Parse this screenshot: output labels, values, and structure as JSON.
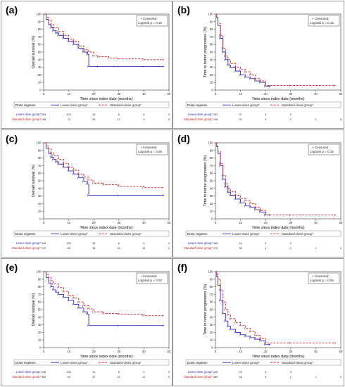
{
  "figure": {
    "panels": [
      {
        "label": "(a)",
        "col": 0,
        "row": 0
      },
      {
        "label": "(b)",
        "col": 1,
        "row": 0
      },
      {
        "label": "(c)",
        "col": 0,
        "row": 1
      },
      {
        "label": "(d)",
        "col": 1,
        "row": 1
      },
      {
        "label": "(e)",
        "col": 0,
        "row": 2
      },
      {
        "label": "(f)",
        "col": 1,
        "row": 2
      }
    ]
  },
  "chart_data": [
    {
      "type": "line",
      "panel": "(a)",
      "ylabel": "Overall survival (%)",
      "xlabel": "Time since index date (months)",
      "xlim": [
        0,
        50
      ],
      "ylim": [
        0,
        100
      ],
      "xticks": [
        0,
        10,
        20,
        30,
        40,
        50
      ],
      "yticks": [
        0,
        10,
        20,
        30,
        40,
        50,
        60,
        70,
        80,
        90,
        100
      ],
      "legend_box": {
        "lines": [
          "+ Censored",
          "Logrank p = 0.15"
        ],
        "position": "top-right"
      },
      "legend": {
        "title": "Dose regimen",
        "entries": [
          "Lower-dose group*",
          "Standard-dose group*"
        ]
      },
      "series": [
        {
          "name": "Lower-dose group*",
          "color": "#2b2bb3",
          "dash": "solid",
          "x": [
            0,
            1,
            2,
            3,
            4,
            5,
            6,
            8,
            10,
            12,
            14,
            16,
            17.5,
            18,
            22,
            30,
            40,
            48
          ],
          "y": [
            100,
            93,
            86,
            82,
            78,
            75,
            72,
            68,
            64,
            60,
            55,
            50,
            47,
            31,
            31,
            31,
            31,
            31
          ]
        },
        {
          "name": "Standard-dose group*",
          "color": "#cc2222",
          "dash": "dashed",
          "x": [
            0,
            1,
            2,
            3,
            4,
            6,
            8,
            10,
            12,
            14,
            16,
            18,
            20,
            22,
            26,
            30,
            40,
            48
          ],
          "y": [
            100,
            96,
            92,
            86,
            82,
            77,
            72,
            67,
            64,
            58,
            53,
            50,
            45,
            44,
            42,
            41,
            40,
            40
          ]
        }
      ],
      "risk_table": {
        "rows": [
          {
            "name": "Lower-dose group*",
            "values": [
              "263",
              "103",
              "16",
              "6",
              "6",
              "0"
            ]
          },
          {
            "name": "Standard-dose group*",
            "values": [
              "198",
              "73",
              "26",
              "17",
              "9",
              "0"
            ]
          }
        ]
      }
    },
    {
      "type": "line",
      "panel": "(b)",
      "ylabel": "Time to tumor progression (%)",
      "xlabel": "Time since index date (months)",
      "xlim": [
        0,
        50
      ],
      "ylim": [
        0,
        100
      ],
      "xticks": [
        0,
        10,
        20,
        30,
        40,
        50
      ],
      "yticks": [
        0,
        10,
        20,
        30,
        40,
        50,
        60,
        70,
        80,
        90,
        100
      ],
      "legend_box": {
        "lines": [
          "+ Censored",
          "Logrank p = 0.12"
        ],
        "position": "top-right"
      },
      "legend": {
        "title": "Dose regimen",
        "entries": [
          "Lower-dose group*",
          "Standard-dose group*"
        ]
      },
      "series": [
        {
          "name": "Lower-dose group*",
          "color": "#2b2bb3",
          "dash": "solid",
          "x": [
            0,
            0.5,
            1,
            2,
            3,
            4,
            5,
            6,
            8,
            10,
            12,
            14,
            16,
            18,
            20,
            22
          ],
          "y": [
            100,
            95,
            85,
            68,
            50,
            40,
            33,
            30,
            25,
            20,
            17,
            15,
            12,
            10,
            5,
            5
          ]
        },
        {
          "name": "Standard-dose group*",
          "color": "#cc2222",
          "dash": "dashed",
          "x": [
            0,
            0.5,
            1,
            2,
            3,
            4,
            5,
            6,
            8,
            10,
            12,
            14,
            16,
            18,
            20,
            30,
            48
          ],
          "y": [
            100,
            96,
            88,
            72,
            55,
            45,
            40,
            35,
            30,
            27,
            24,
            20,
            15,
            12,
            6,
            6,
            6
          ]
        }
      ],
      "risk_table": {
        "rows": [
          {
            "name": "Lower-dose group*",
            "values": [
              "263",
              "37",
              "5",
              "0",
              "",
              ""
            ]
          },
          {
            "name": "Standard-dose group*",
            "values": [
              "198",
              "32",
              "4",
              "2",
              "1",
              "0"
            ]
          }
        ]
      }
    },
    {
      "type": "line",
      "panel": "(c)",
      "ylabel": "Overall survival (%)",
      "xlabel": "Time since index date (months)",
      "xlim": [
        0,
        50
      ],
      "ylim": [
        0,
        100
      ],
      "xticks": [
        0,
        10,
        20,
        30,
        40,
        50
      ],
      "yticks": [
        0,
        10,
        20,
        30,
        40,
        50,
        60,
        70,
        80,
        90,
        100
      ],
      "legend_box": {
        "lines": [
          "+ Censored",
          "Logrank p = 0.08"
        ],
        "position": "top-right"
      },
      "legend": {
        "title": "Dose regimen",
        "entries": [
          "Lower-dose group*",
          "Standard-dose group*"
        ]
      },
      "series": [
        {
          "name": "Lower-dose group*",
          "color": "#2b2bb3",
          "dash": "solid",
          "x": [
            0,
            1,
            2,
            3,
            4,
            5,
            6,
            8,
            10,
            12,
            14,
            16,
            17.5,
            18,
            30,
            48
          ],
          "y": [
            100,
            93,
            86,
            81,
            78,
            75,
            72,
            68,
            63,
            59,
            54,
            49,
            46,
            31,
            31,
            31
          ]
        },
        {
          "name": "Standard-dose group*",
          "color": "#cc2222",
          "dash": "dashed",
          "x": [
            0,
            1,
            2,
            3,
            4,
            6,
            8,
            10,
            12,
            14,
            16,
            18,
            20,
            24,
            30,
            40,
            48
          ],
          "y": [
            100,
            96,
            92,
            87,
            83,
            78,
            73,
            68,
            64,
            59,
            55,
            51,
            47,
            45,
            43,
            41,
            41
          ]
        }
      ],
      "risk_table": {
        "rows": [
          {
            "name": "Lower-dose group*",
            "values": [
              "345",
              "133",
              "39",
              "6",
              "4",
              "0"
            ]
          },
          {
            "name": "Standard-dose group*",
            "values": [
              "172",
              "63",
              "33",
              "20",
              "11",
              "0"
            ]
          }
        ]
      }
    },
    {
      "type": "line",
      "panel": "(d)",
      "ylabel": "Time to tumor progression (%)",
      "xlabel": "Time since index date (months)",
      "xlim": [
        0,
        50
      ],
      "ylim": [
        0,
        100
      ],
      "xticks": [
        0,
        10,
        20,
        30,
        40,
        50
      ],
      "yticks": [
        0,
        10,
        20,
        30,
        40,
        50,
        60,
        70,
        80,
        90,
        100
      ],
      "legend_box": {
        "lines": [
          "+ Censored",
          "Logrank p = 0.15"
        ],
        "position": "top-right"
      },
      "legend": {
        "title": "Dose regimen",
        "entries": [
          "Lower-dose group*",
          "Standard-dose group*"
        ]
      },
      "series": [
        {
          "name": "Lower-dose group*",
          "color": "#2b2bb3",
          "dash": "solid",
          "x": [
            0,
            0.5,
            1,
            2,
            3,
            4,
            5,
            6,
            8,
            10,
            12,
            14,
            16,
            18,
            20,
            22
          ],
          "y": [
            100,
            95,
            86,
            70,
            52,
            42,
            35,
            31,
            26,
            21,
            17,
            15,
            12,
            9,
            5,
            5
          ]
        },
        {
          "name": "Standard-dose group*",
          "color": "#cc2222",
          "dash": "dashed",
          "x": [
            0,
            0.5,
            1,
            2,
            3,
            4,
            5,
            6,
            8,
            10,
            12,
            14,
            16,
            18,
            20,
            30,
            48
          ],
          "y": [
            100,
            96,
            89,
            73,
            57,
            46,
            40,
            36,
            31,
            27,
            24,
            20,
            15,
            11,
            5,
            5,
            5
          ]
        }
      ],
      "risk_table": {
        "rows": [
          {
            "name": "Lower-dose group*",
            "values": [
              "345",
              "44",
              "5",
              "0",
              "",
              ""
            ]
          },
          {
            "name": "Standard-dose group*",
            "values": [
              "172",
              "35",
              "4",
              "2",
              "1",
              "0"
            ]
          }
        ]
      }
    },
    {
      "type": "line",
      "panel": "(e)",
      "ylabel": "Overall survival (%)",
      "xlabel": "Time since index date (months)",
      "xlim": [
        0,
        50
      ],
      "ylim": [
        0,
        100
      ],
      "xticks": [
        0,
        10,
        20,
        30,
        40,
        50
      ],
      "yticks": [
        0,
        10,
        20,
        30,
        40,
        50,
        60,
        70,
        80,
        90,
        100
      ],
      "legend_box": {
        "lines": [
          "+ Censored",
          "Logrank p = 0.02"
        ],
        "position": "top-right"
      },
      "legend": {
        "title": "Dose regimen",
        "entries": [
          "Lower-dose group*",
          "Standard-dose group*"
        ]
      },
      "series": [
        {
          "name": "Lower-dose group*",
          "color": "#2b2bb3",
          "dash": "solid",
          "x": [
            0,
            1,
            2,
            3,
            4,
            5,
            6,
            8,
            10,
            12,
            14,
            16,
            17.5,
            18,
            30,
            48
          ],
          "y": [
            100,
            92,
            85,
            80,
            76,
            73,
            70,
            66,
            62,
            57,
            52,
            47,
            44,
            29,
            29,
            29
          ]
        },
        {
          "name": "Standard-dose group*",
          "color": "#cc2222",
          "dash": "dashed",
          "x": [
            0,
            1,
            2,
            3,
            4,
            6,
            8,
            10,
            12,
            14,
            16,
            18,
            20,
            24,
            30,
            40,
            48
          ],
          "y": [
            100,
            96,
            92,
            88,
            84,
            79,
            74,
            69,
            65,
            60,
            55,
            51,
            47,
            45,
            44,
            42,
            42
          ]
        }
      ],
      "risk_table": {
        "rows": [
          {
            "name": "Lower-dose group*",
            "values": [
              "238",
              "128",
              "21",
              "5",
              "5",
              "0"
            ]
          },
          {
            "name": "Standard-dose group*",
            "values": [
              "389",
              "94",
              "37",
              "21",
              "12",
              "0"
            ]
          }
        ]
      }
    },
    {
      "type": "line",
      "panel": "(f)",
      "ylabel": "Time to tumor progression (%)",
      "xlabel": "Time since index date (months)",
      "xlim": [
        0,
        50
      ],
      "ylim": [
        0,
        100
      ],
      "xticks": [
        0,
        10,
        20,
        30,
        40,
        50
      ],
      "yticks": [
        0,
        10,
        20,
        30,
        40,
        50,
        60,
        70,
        80,
        90,
        100
      ],
      "legend_box": {
        "lines": [
          "+ Censored",
          "Logrank p = 0.05"
        ],
        "position": "top-right"
      },
      "legend": {
        "title": "Dose regimen",
        "entries": [
          "Lower-dose group*",
          "Standard-dose group*"
        ]
      },
      "series": [
        {
          "name": "Lower-dose group*",
          "color": "#2b2bb3",
          "dash": "solid",
          "x": [
            0,
            0.5,
            1,
            2,
            3,
            4,
            5,
            6,
            8,
            10,
            12,
            14,
            16,
            18,
            20,
            22
          ],
          "y": [
            100,
            93,
            82,
            62,
            45,
            35,
            28,
            24,
            20,
            17,
            15,
            13,
            11,
            9,
            4,
            4
          ]
        },
        {
          "name": "Standard-dose group*",
          "color": "#cc2222",
          "dash": "dashed",
          "x": [
            0,
            0.5,
            1,
            2,
            3,
            4,
            5,
            6,
            8,
            10,
            12,
            14,
            16,
            18,
            20,
            30,
            48
          ],
          "y": [
            100,
            97,
            90,
            76,
            60,
            50,
            43,
            38,
            33,
            29,
            25,
            21,
            16,
            12,
            6,
            6,
            6
          ]
        }
      ],
      "risk_table": {
        "rows": [
          {
            "name": "Lower-dose group*",
            "values": [
              "238",
              "29",
              "4",
              "0",
              "",
              ""
            ]
          },
          {
            "name": "Standard-dose group*",
            "values": [
              "389",
              "46",
              "5",
              "2",
              "1",
              "0"
            ]
          }
        ]
      }
    }
  ]
}
